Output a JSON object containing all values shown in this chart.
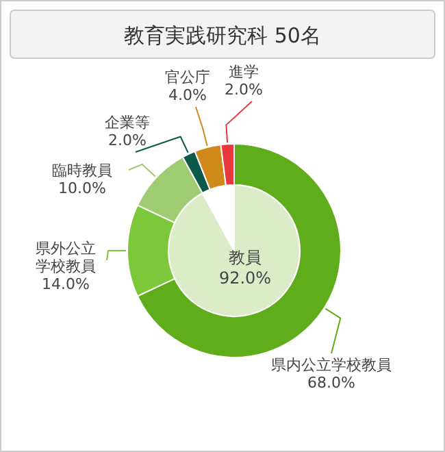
{
  "chart_data": [
    {
      "type": "pie",
      "title": "教育実践研究科 50名",
      "categories": [
        "教員",
        null
      ],
      "values": [
        92,
        8
      ],
      "colors": [
        "#dcebc8",
        "#ffffff"
      ],
      "value_labels": [
        "92.0%",
        null
      ]
    },
    {
      "type": "donut",
      "categories": [
        "県内公立学校教員",
        "県外公立学校教員",
        "臨時教員",
        "企業等",
        "官公庁",
        "進学"
      ],
      "values": [
        68,
        14,
        10,
        2,
        4,
        2
      ],
      "colors": [
        "#5fad1a",
        "#7dc73a",
        "#9fcc73",
        "#0d5a4a",
        "#d08a1c",
        "#e8383d"
      ],
      "value_labels": [
        "68.0%",
        "14.0%",
        "10.0%",
        "2.0%",
        "4.0%",
        "2.0%"
      ]
    }
  ]
}
